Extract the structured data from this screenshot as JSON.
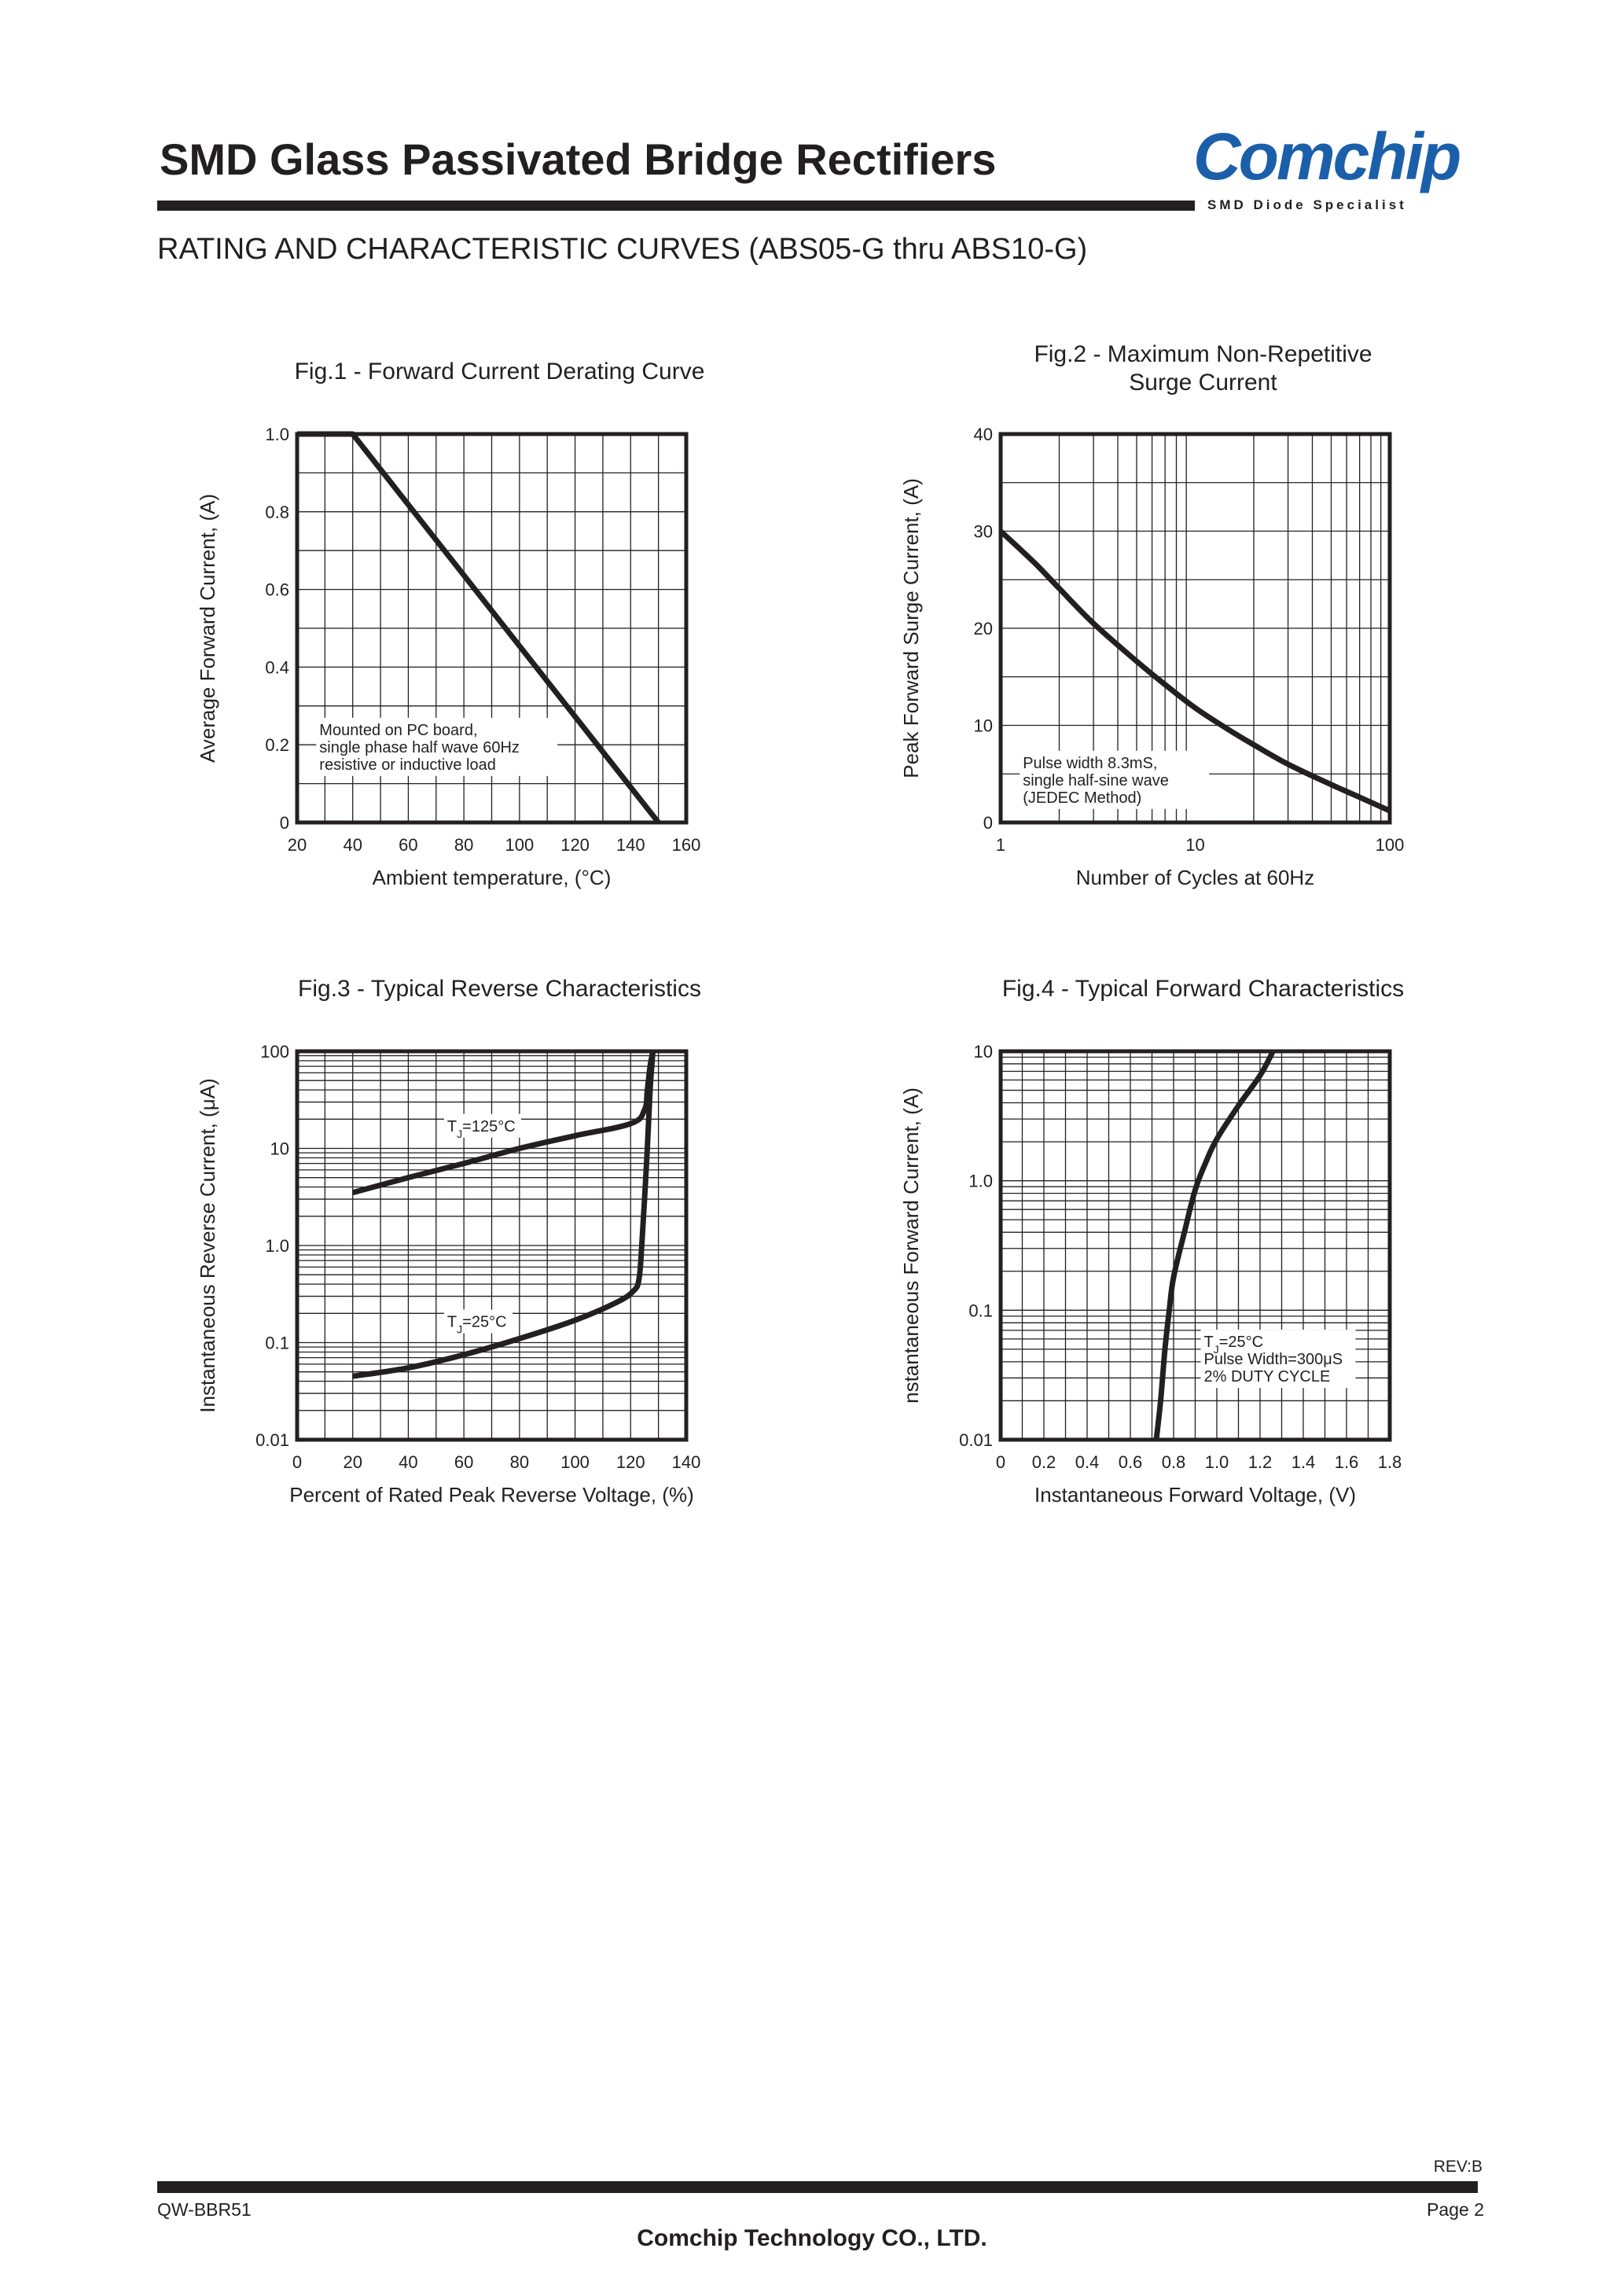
{
  "header": {
    "title": "SMD Glass Passivated Bridge Rectifiers",
    "subtitle": "RATING AND CHARACTERISTIC CURVES (ABS05-G thru ABS10-G)",
    "logo_text": "Comchip",
    "logo_tagline": "SMD Diode Specialist",
    "logo_color": "#1b5faa"
  },
  "footer": {
    "revision": "REV:B",
    "doc_number": "QW-BBR51",
    "page": "Page 2",
    "company": "Comchip Technology CO., LTD."
  },
  "colors": {
    "ink": "#231f20",
    "grid": "#231f20"
  },
  "chart_data": [
    {
      "id": "fig1",
      "type": "line",
      "title": "Fig.1 - Forward Current Derating Curve",
      "title_lines": [
        "Fig.1 - Forward Current Derating Curve"
      ],
      "xlabel": "Ambient temperature, (°C)",
      "ylabel": "Average Forward Current, (A)",
      "xscale": "linear",
      "yscale": "linear",
      "xlim": [
        20,
        160
      ],
      "ylim": [
        0,
        1.0
      ],
      "xticks": [
        20,
        40,
        60,
        80,
        100,
        120,
        140,
        160
      ],
      "xtick_labels": [
        "20",
        "40",
        "60",
        "80",
        "100",
        "120",
        "140",
        "160"
      ],
      "yticks": [
        0,
        0.2,
        0.4,
        0.6,
        0.8,
        1.0
      ],
      "ytick_labels": [
        "0",
        "0.2",
        "0.4",
        "0.6",
        "0.8",
        "1.0"
      ],
      "grid": true,
      "series": [
        {
          "name": "derating",
          "x": [
            20,
            40,
            150
          ],
          "y": [
            1.0,
            1.0,
            0
          ]
        }
      ],
      "annotations": [
        {
          "lines": [
            "Mounted on PC board,",
            "single phase half wave 60Hz",
            "resistive or inductive load"
          ],
          "x": 28,
          "y": 0.225
        }
      ]
    },
    {
      "id": "fig2",
      "type": "line",
      "title": "Fig.2 - Maximum Non-Repetitive Surge Current",
      "title_lines": [
        "Fig.2 - Maximum Non-Repetitive",
        "Surge Current"
      ],
      "xlabel": "Number of Cycles at 60Hz",
      "ylabel": "Peak Forward Surge Current, (A)",
      "xscale": "log",
      "yscale": "linear",
      "xlim": [
        1,
        100
      ],
      "ylim": [
        0,
        40
      ],
      "xticks": [
        1,
        10,
        100
      ],
      "xtick_labels": [
        "1",
        "10",
        "100"
      ],
      "yticks": [
        0,
        10,
        20,
        30,
        40
      ],
      "ytick_labels": [
        "0",
        "10",
        "20",
        "30",
        "40"
      ],
      "grid": true,
      "series": [
        {
          "name": "surge",
          "x": [
            1,
            1.5,
            2,
            3,
            5,
            7,
            10,
            15,
            20,
            30,
            50,
            70,
            100
          ],
          "y": [
            30,
            26.7,
            24.1,
            20.5,
            16.6,
            14.2,
            11.8,
            9.5,
            8.0,
            6.0,
            3.9,
            2.6,
            1.2
          ]
        }
      ],
      "annotations": [
        {
          "lines": [
            "Pulse width 8.3mS,",
            "single half-sine wave",
            "(JEDEC Method)"
          ],
          "x": 1.3,
          "y": 5.6
        }
      ]
    },
    {
      "id": "fig3",
      "type": "line",
      "title": "Fig.3 - Typical Reverse Characteristics",
      "title_lines": [
        "Fig.3 - Typical Reverse Characteristics"
      ],
      "xlabel": "Percent of Rated Peak Reverse Voltage, (%)",
      "ylabel": "Instantaneous Reverse Current, (μA)",
      "xscale": "linear",
      "yscale": "log",
      "xlim": [
        0,
        140
      ],
      "ylim": [
        0.01,
        100
      ],
      "xticks": [
        0,
        20,
        40,
        60,
        80,
        100,
        120,
        140
      ],
      "xtick_labels": [
        "0",
        "20",
        "40",
        "60",
        "80",
        "100",
        "120",
        "140"
      ],
      "yticks": [
        0.01,
        0.1,
        1,
        10,
        100
      ],
      "ytick_labels": [
        "0.01",
        "0.1",
        "1.0",
        "10",
        "100"
      ],
      "grid": true,
      "series": [
        {
          "name": "TJ=125°C",
          "x": [
            20,
            40,
            60,
            80,
            100,
            120,
            125,
            126,
            127,
            128
          ],
          "y": [
            3.5,
            5.0,
            7.0,
            10.0,
            13.5,
            18.0,
            25.0,
            40.0,
            70.0,
            100.0
          ]
        },
        {
          "name": "TJ=25°C",
          "x": [
            20,
            40,
            60,
            80,
            100,
            115,
            121,
            123,
            124,
            125,
            126,
            127,
            128
          ],
          "y": [
            0.045,
            0.055,
            0.075,
            0.11,
            0.17,
            0.26,
            0.34,
            0.45,
            1.0,
            3.0,
            10.0,
            40.0,
            100.0
          ]
        }
      ],
      "annotations": [
        {
          "lines": [
            "TJ=125°C"
          ],
          "x": 54,
          "y": 15
        },
        {
          "lines": [
            "TJ=25°C"
          ],
          "x": 54,
          "y": 0.145
        }
      ]
    },
    {
      "id": "fig4",
      "type": "line",
      "title": "Fig.4 - Typical Forward Characteristics",
      "title_lines": [
        "Fig.4 - Typical Forward Characteristics"
      ],
      "xlabel": "Instantaneous Forward Voltage, (V)",
      "ylabel": "nstantaneous Forward Current, (A)",
      "xscale": "linear",
      "yscale": "log",
      "xlim": [
        0,
        1.8
      ],
      "ylim": [
        0.01,
        10
      ],
      "xticks": [
        0,
        0.2,
        0.4,
        0.6,
        0.8,
        1.0,
        1.2,
        1.4,
        1.6,
        1.8
      ],
      "xtick_labels": [
        "0",
        "0.2",
        "0.4",
        "0.6",
        "0.8",
        "1.0",
        "1.2",
        "1.4",
        "1.6",
        "1.8"
      ],
      "yticks": [
        0.01,
        0.1,
        1,
        10
      ],
      "ytick_labels": [
        "0.01",
        "0.1",
        "1.0",
        "10"
      ],
      "grid": true,
      "series": [
        {
          "name": "TJ=25°C",
          "x": [
            0.72,
            0.74,
            0.76,
            0.78,
            0.8,
            0.85,
            0.9,
            0.95,
            1.0,
            1.1,
            1.2,
            1.26
          ],
          "y": [
            0.01,
            0.02,
            0.05,
            0.1,
            0.18,
            0.4,
            0.85,
            1.4,
            2.1,
            3.8,
            6.5,
            10.0
          ]
        }
      ],
      "annotations": [
        {
          "lines": [
            "TJ=25°C",
            "Pulse Width=300μS",
            "2% DUTY CYCLE"
          ],
          "x": 0.94,
          "y": 0.052
        }
      ]
    }
  ]
}
